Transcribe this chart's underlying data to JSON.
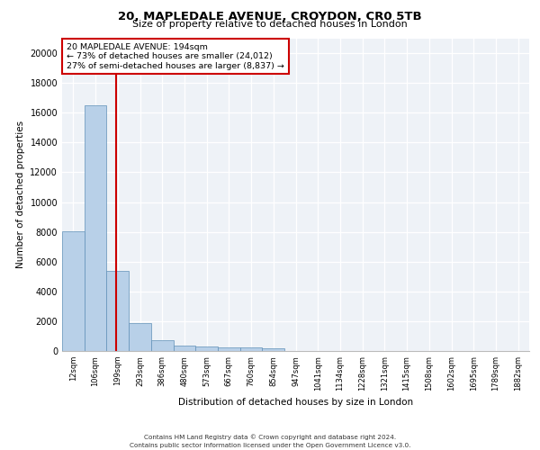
{
  "title1": "20, MAPLEDALE AVENUE, CROYDON, CR0 5TB",
  "title2": "Size of property relative to detached houses in London",
  "xlabel": "Distribution of detached houses by size in London",
  "ylabel": "Number of detached properties",
  "categories": [
    "12sqm",
    "106sqm",
    "199sqm",
    "293sqm",
    "386sqm",
    "480sqm",
    "573sqm",
    "667sqm",
    "760sqm",
    "854sqm",
    "947sqm",
    "1041sqm",
    "1134sqm",
    "1228sqm",
    "1321sqm",
    "1415sqm",
    "1508sqm",
    "1602sqm",
    "1695sqm",
    "1789sqm",
    "1882sqm"
  ],
  "values": [
    8050,
    16500,
    5400,
    1850,
    750,
    350,
    280,
    230,
    220,
    180,
    0,
    0,
    0,
    0,
    0,
    0,
    0,
    0,
    0,
    0,
    0
  ],
  "bar_color": "#b8d0e8",
  "bar_edge_color": "#6090b8",
  "annotation_line1": "20 MAPLEDALE AVENUE: 194sqm",
  "annotation_line2": "← 73% of detached houses are smaller (24,012)",
  "annotation_line3": "27% of semi-detached houses are larger (8,837) →",
  "ylim": [
    0,
    21000
  ],
  "yticks": [
    0,
    2000,
    4000,
    6000,
    8000,
    10000,
    12000,
    14000,
    16000,
    18000,
    20000
  ],
  "bg_color": "#eef2f7",
  "footer1": "Contains HM Land Registry data © Crown copyright and database right 2024.",
  "footer2": "Contains public sector information licensed under the Open Government Licence v3.0."
}
